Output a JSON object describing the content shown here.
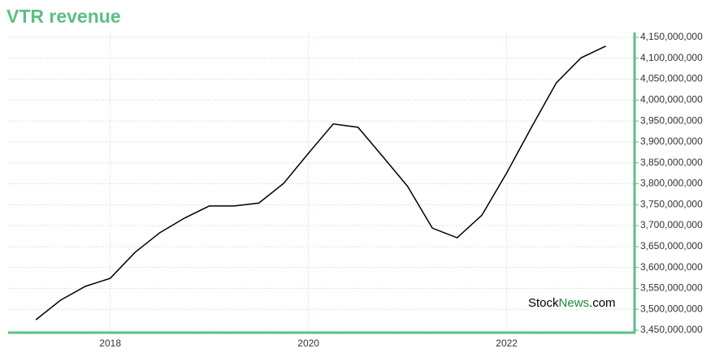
{
  "chart_data": {
    "type": "line",
    "title": "VTR revenue",
    "watermark": [
      "Stock",
      "News",
      ".com"
    ],
    "x": [
      2017.25,
      2017.5,
      2017.75,
      2018.0,
      2018.25,
      2018.5,
      2018.75,
      2019.0,
      2019.25,
      2019.5,
      2019.75,
      2020.0,
      2020.25,
      2020.5,
      2020.75,
      2021.0,
      2021.25,
      2021.5,
      2021.75,
      2022.0,
      2022.25,
      2022.5,
      2022.75,
      2023.0
    ],
    "series": [
      {
        "name": "VTR revenue",
        "color": "#000000",
        "values": [
          3475000000,
          3522000000,
          3555000000,
          3574000000,
          3636000000,
          3683000000,
          3718000000,
          3747000000,
          3747000000,
          3754000000,
          3801000000,
          3873000000,
          3943000000,
          3935000000,
          3865000000,
          3794000000,
          3694000000,
          3671000000,
          3725000000,
          3826000000,
          3935000000,
          4041000000,
          4101000000,
          4129000000
        ]
      }
    ],
    "xlim": [
      2016.97,
      2023.29
    ],
    "xticks": [
      2018,
      2020,
      2022
    ],
    "ylim": [
      3450000000,
      4150000000
    ],
    "yticks": [
      {
        "value": 3450000000,
        "label": "3,450,000,000"
      },
      {
        "value": 3500000000,
        "label": "3,500,000,000"
      },
      {
        "value": 3550000000,
        "label": "3,550,000,000"
      },
      {
        "value": 3600000000,
        "label": "3,600,000,000"
      },
      {
        "value": 3650000000,
        "label": "3,650,000,000"
      },
      {
        "value": 3700000000,
        "label": "3,700,000,000"
      },
      {
        "value": 3750000000,
        "label": "3,750,000,000"
      },
      {
        "value": 3800000000,
        "label": "3,800,000,000"
      },
      {
        "value": 3850000000,
        "label": "3,850,000,000"
      },
      {
        "value": 3900000000,
        "label": "3,900,000,000"
      },
      {
        "value": 3950000000,
        "label": "3,950,000,000"
      },
      {
        "value": 4000000000,
        "label": "4,000,000,000"
      },
      {
        "value": 4050000000,
        "label": "4,050,000,000"
      },
      {
        "value": 4100000000,
        "label": "4,100,000,000"
      },
      {
        "value": 4150000000,
        "label": "4,150,000,000"
      }
    ],
    "grid": true,
    "axis_color": "#5cbf84"
  }
}
